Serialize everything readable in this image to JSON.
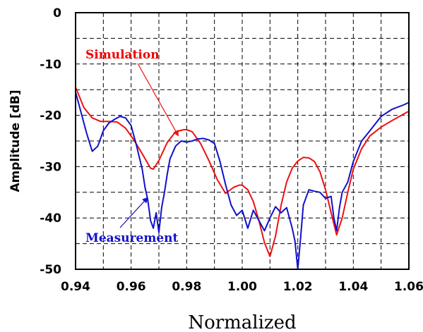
{
  "chart_data": {
    "type": "line",
    "title": "",
    "xlabel": "Normalized",
    "ylabel": "Amplitude [dB]",
    "xlim": [
      0.94,
      1.06
    ],
    "ylim": [
      -50,
      0
    ],
    "xticks": [
      "0.94",
      "0.96",
      "0.98",
      "1.00",
      "1.02",
      "1.04",
      "1.06"
    ],
    "yticks": [
      "0",
      "-10",
      "-20",
      "-30",
      "-40",
      "-50"
    ],
    "grid": true,
    "colors": {
      "simulation": "#ee1111",
      "measurement": "#1111cc"
    },
    "annotations": [
      {
        "text": "Simulation",
        "series": "Simulation",
        "arrow_to": [
          0.977,
          -24.0
        ]
      },
      {
        "text": "Measurement",
        "series": "Measurement",
        "arrow_to": [
          0.966,
          -36.0
        ]
      }
    ],
    "series": [
      {
        "name": "Simulation",
        "x": [
          0.94,
          0.943,
          0.946,
          0.949,
          0.952,
          0.955,
          0.958,
          0.961,
          0.964,
          0.967,
          0.968,
          0.97,
          0.973,
          0.976,
          0.979,
          0.98,
          0.982,
          0.985,
          0.988,
          0.991,
          0.994,
          0.997,
          0.999,
          1.0,
          1.002,
          1.004,
          1.006,
          1.008,
          1.01,
          1.012,
          1.014,
          1.016,
          1.018,
          1.02,
          1.022,
          1.024,
          1.026,
          1.028,
          1.03,
          1.032,
          1.034,
          1.036,
          1.038,
          1.04,
          1.043,
          1.046,
          1.05,
          1.054,
          1.058,
          1.06
        ],
        "y": [
          -14.5,
          -18.5,
          -20.5,
          -21.2,
          -21.2,
          -21.3,
          -22.5,
          -24.8,
          -27.5,
          -30.3,
          -30.5,
          -28.8,
          -25.3,
          -23.2,
          -22.8,
          -22.8,
          -23.2,
          -25.5,
          -28.8,
          -32.5,
          -35.2,
          -34.0,
          -33.6,
          -33.6,
          -34.5,
          -36.8,
          -40.5,
          -44.8,
          -47.5,
          -43.5,
          -37.5,
          -33.0,
          -30.3,
          -28.9,
          -28.2,
          -28.3,
          -29.0,
          -31.0,
          -34.5,
          -39.0,
          -43.3,
          -40.0,
          -35.0,
          -30.5,
          -26.5,
          -24.0,
          -22.3,
          -21.0,
          -19.8,
          -19.2
        ]
      },
      {
        "name": "Measurement",
        "x": [
          0.94,
          0.942,
          0.944,
          0.946,
          0.948,
          0.95,
          0.952,
          0.954,
          0.956,
          0.958,
          0.96,
          0.962,
          0.964,
          0.965,
          0.966,
          0.967,
          0.968,
          0.969,
          0.97,
          0.971,
          0.972,
          0.973,
          0.974,
          0.976,
          0.978,
          0.98,
          0.982,
          0.984,
          0.986,
          0.988,
          0.99,
          0.992,
          0.994,
          0.996,
          0.998,
          1.0,
          1.002,
          1.004,
          1.006,
          1.008,
          1.01,
          1.012,
          1.014,
          1.016,
          1.018,
          1.019,
          1.02,
          1.021,
          1.022,
          1.024,
          1.026,
          1.028,
          1.03,
          1.032,
          1.033,
          1.034,
          1.035,
          1.036,
          1.038,
          1.04,
          1.043,
          1.046,
          1.05,
          1.054,
          1.058,
          1.06
        ],
        "y": [
          -15.5,
          -19.5,
          -23.5,
          -27.0,
          -26.0,
          -23.0,
          -21.5,
          -20.8,
          -20.2,
          -20.5,
          -22.0,
          -26.0,
          -30.5,
          -34.0,
          -36.5,
          -40.5,
          -42.0,
          -39.0,
          -42.8,
          -38.0,
          -35.0,
          -31.5,
          -28.5,
          -26.0,
          -25.0,
          -25.2,
          -25.0,
          -24.6,
          -24.5,
          -24.8,
          -25.5,
          -29.0,
          -33.5,
          -37.5,
          -39.5,
          -38.5,
          -42.0,
          -38.5,
          -40.5,
          -42.5,
          -40.0,
          -37.8,
          -39.0,
          -38.0,
          -42.0,
          -44.5,
          -50.0,
          -44.0,
          -37.5,
          -34.5,
          -34.8,
          -35.0,
          -36.2,
          -35.8,
          -40.0,
          -42.5,
          -38.0,
          -35.0,
          -33.0,
          -29.0,
          -25.0,
          -23.0,
          -20.2,
          -18.8,
          -18.0,
          -17.5
        ]
      }
    ]
  }
}
